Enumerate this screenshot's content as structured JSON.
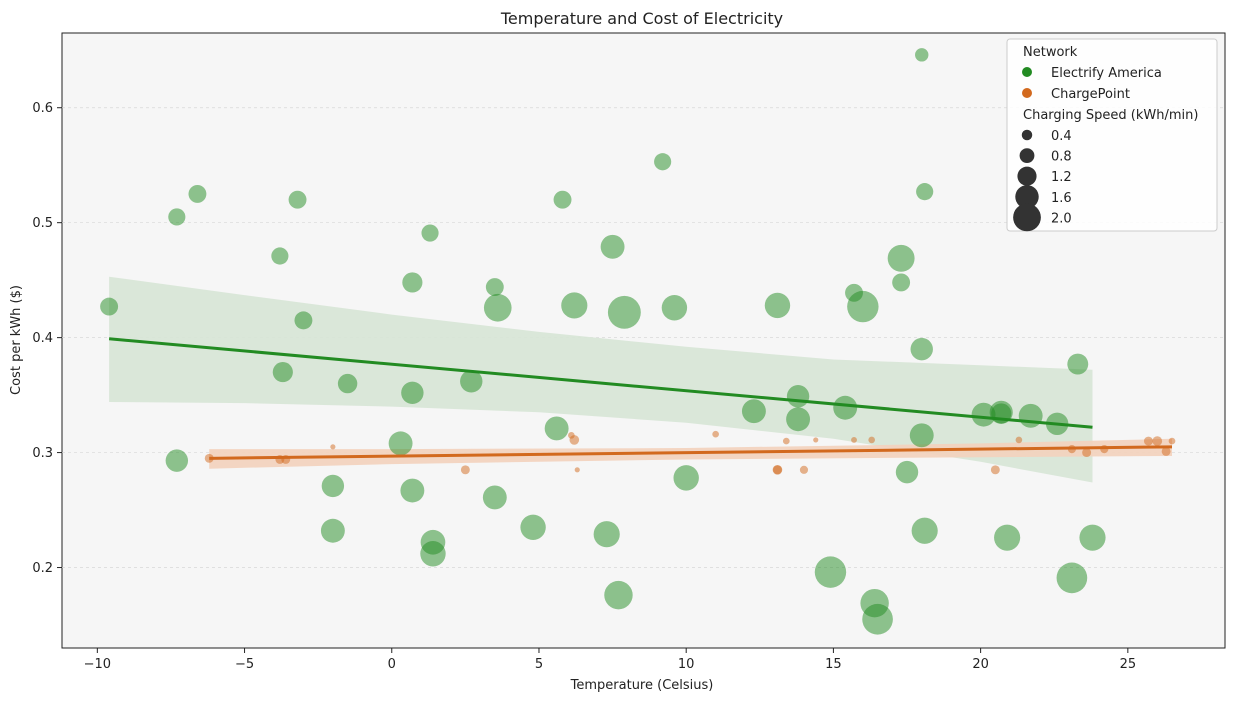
{
  "chart_data": {
    "type": "scatter",
    "title": "Temperature and Cost of Electricity",
    "xlabel": "Temperature (Celsius)",
    "ylabel": "Cost per kWh ($)",
    "xlim": [
      -11.2,
      28.3
    ],
    "ylim": [
      0.13,
      0.665
    ],
    "x_ticks": [
      -10,
      -5,
      0,
      5,
      10,
      15,
      20,
      25
    ],
    "x_tick_labels": [
      "−10",
      "−5",
      "0",
      "5",
      "10",
      "15",
      "20",
      "25"
    ],
    "y_ticks": [
      0.2,
      0.3,
      0.4,
      0.5,
      0.6
    ],
    "y_tick_labels": [
      "0.2",
      "0.3",
      "0.4",
      "0.5",
      "0.6"
    ],
    "grid": "horizontal",
    "legend_position": "top-right",
    "colors": {
      "background": "#f6f6f6",
      "electrify": "#228b22",
      "chargepoint": "#d2691e",
      "electrify_band": "#d7e6d6",
      "chargepoint_band": "#f3d2bd"
    },
    "legend": {
      "hue_title": "Network",
      "size_title": "Charging Speed (kWh/min)",
      "size_entries": [
        "0.4",
        "0.8",
        "1.2",
        "1.6",
        "2.0"
      ],
      "size_values": [
        0.4,
        0.8,
        1.2,
        1.6,
        2.0
      ]
    },
    "series": [
      {
        "name": "Electrify America",
        "color": "#228b22",
        "points": [
          [
            -9.6,
            0.427,
            0.9
          ],
          [
            -7.3,
            0.505,
            0.85
          ],
          [
            -7.3,
            0.293,
            1.2
          ],
          [
            -6.6,
            0.525,
            0.9
          ],
          [
            -3.8,
            0.471,
            0.85
          ],
          [
            -3.2,
            0.52,
            0.9
          ],
          [
            -3.7,
            0.37,
            1.05
          ],
          [
            -3.0,
            0.415,
            0.9
          ],
          [
            -2.0,
            0.271,
            1.2
          ],
          [
            -2.0,
            0.232,
            1.3
          ],
          [
            -1.5,
            0.36,
            1.0
          ],
          [
            0.3,
            0.308,
            1.3
          ],
          [
            0.7,
            0.352,
            1.2
          ],
          [
            0.7,
            0.448,
            1.05
          ],
          [
            0.7,
            0.267,
            1.3
          ],
          [
            1.3,
            0.491,
            0.85
          ],
          [
            1.4,
            0.222,
            1.35
          ],
          [
            1.4,
            0.212,
            1.4
          ],
          [
            2.7,
            0.362,
            1.2
          ],
          [
            3.5,
            0.444,
            0.9
          ],
          [
            3.6,
            0.426,
            1.55
          ],
          [
            3.5,
            0.261,
            1.3
          ],
          [
            4.8,
            0.235,
            1.4
          ],
          [
            5.6,
            0.321,
            1.3
          ],
          [
            5.8,
            0.52,
            0.9
          ],
          [
            6.2,
            0.428,
            1.45
          ],
          [
            7.3,
            0.229,
            1.45
          ],
          [
            7.5,
            0.479,
            1.3
          ],
          [
            7.7,
            0.176,
            1.6
          ],
          [
            7.9,
            0.422,
            1.9
          ],
          [
            9.2,
            0.553,
            0.85
          ],
          [
            9.6,
            0.426,
            1.4
          ],
          [
            10.0,
            0.278,
            1.4
          ],
          [
            12.3,
            0.336,
            1.3
          ],
          [
            13.1,
            0.428,
            1.4
          ],
          [
            13.8,
            0.349,
            1.2
          ],
          [
            13.8,
            0.329,
            1.3
          ],
          [
            14.9,
            0.196,
            1.8
          ],
          [
            15.4,
            0.339,
            1.3
          ],
          [
            15.7,
            0.439,
            0.9
          ],
          [
            16.0,
            0.427,
            1.8
          ],
          [
            16.4,
            0.169,
            1.6
          ],
          [
            16.5,
            0.155,
            1.75
          ],
          [
            17.3,
            0.448,
            0.9
          ],
          [
            17.3,
            0.469,
            1.5
          ],
          [
            17.5,
            0.283,
            1.2
          ],
          [
            18.0,
            0.39,
            1.2
          ],
          [
            18.0,
            0.646,
            0.6
          ],
          [
            18.0,
            0.315,
            1.3
          ],
          [
            18.1,
            0.527,
            0.85
          ],
          [
            18.1,
            0.232,
            1.45
          ],
          [
            20.1,
            0.333,
            1.3
          ],
          [
            20.7,
            0.335,
            1.25
          ],
          [
            20.7,
            0.334,
            1.05
          ],
          [
            20.9,
            0.226,
            1.45
          ],
          [
            21.7,
            0.332,
            1.3
          ],
          [
            22.6,
            0.325,
            1.2
          ],
          [
            23.1,
            0.191,
            1.75
          ],
          [
            23.3,
            0.377,
            1.1
          ],
          [
            23.8,
            0.226,
            1.45
          ]
        ],
        "trend": {
          "x": [
            -9.6,
            23.8
          ],
          "y": [
            0.399,
            0.322
          ]
        },
        "band": {
          "x": [
            -9.6,
            -5,
            0,
            5,
            10,
            15,
            20,
            23.8
          ],
          "upper": [
            0.453,
            0.437,
            0.42,
            0.405,
            0.392,
            0.381,
            0.376,
            0.372
          ],
          "lower": [
            0.344,
            0.343,
            0.34,
            0.335,
            0.326,
            0.312,
            0.292,
            0.274
          ]
        }
      },
      {
        "name": "ChargePoint",
        "color": "#d2691e",
        "points": [
          [
            -6.2,
            0.295,
            0.3
          ],
          [
            -3.8,
            0.294,
            0.3
          ],
          [
            -3.6,
            0.294,
            0.3
          ],
          [
            -2.0,
            0.305,
            0.05
          ],
          [
            2.5,
            0.285,
            0.3
          ],
          [
            6.1,
            0.315,
            0.15
          ],
          [
            6.2,
            0.311,
            0.35
          ],
          [
            6.3,
            0.285,
            0.05
          ],
          [
            11.0,
            0.316,
            0.15
          ],
          [
            13.1,
            0.285,
            0.35
          ],
          [
            13.1,
            0.285,
            0.3
          ],
          [
            13.4,
            0.31,
            0.15
          ],
          [
            14.0,
            0.285,
            0.25
          ],
          [
            14.4,
            0.311,
            0.05
          ],
          [
            15.7,
            0.311,
            0.1
          ],
          [
            16.3,
            0.311,
            0.15
          ],
          [
            20.5,
            0.285,
            0.3
          ],
          [
            21.3,
            0.311,
            0.15
          ],
          [
            23.1,
            0.303,
            0.25
          ],
          [
            23.6,
            0.3,
            0.3
          ],
          [
            24.2,
            0.303,
            0.25
          ],
          [
            25.7,
            0.31,
            0.3
          ],
          [
            26.0,
            0.31,
            0.35
          ],
          [
            26.3,
            0.301,
            0.3
          ],
          [
            26.5,
            0.31,
            0.15
          ]
        ],
        "trend": {
          "x": [
            -6.2,
            26.5
          ],
          "y": [
            0.295,
            0.305
          ]
        },
        "band": {
          "x": [
            -6.2,
            0,
            10,
            20,
            26.5
          ],
          "upper": [
            0.303,
            0.303,
            0.304,
            0.308,
            0.312
          ],
          "lower": [
            0.286,
            0.29,
            0.294,
            0.296,
            0.297
          ]
        }
      }
    ]
  }
}
